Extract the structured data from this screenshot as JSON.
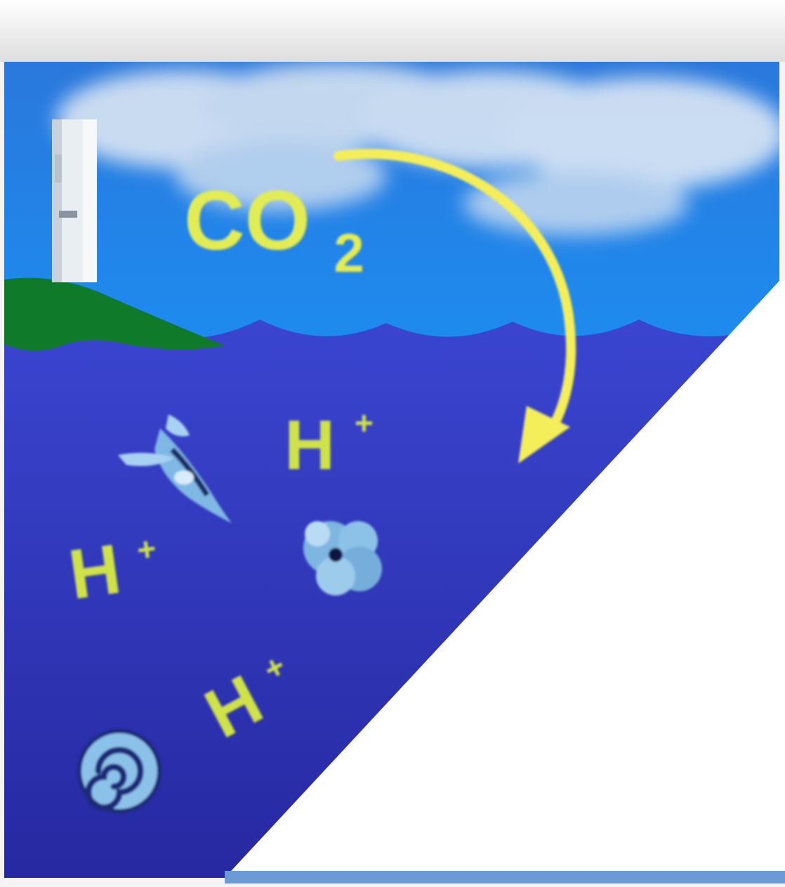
{
  "colors": {
    "sky_top": "#2a7fe0",
    "sky_bottom": "#1f8ff0",
    "cloud": "#e8eef5",
    "ocean": "#3540c8",
    "ocean_deep": "#2a2fa6",
    "land": "#0e7a2a",
    "label": "#d8e84a",
    "arrow": "#f4ee5a",
    "icon_light": "#8fc8f0"
  },
  "labels": {
    "co2_main": "CO",
    "co2_subscript": "2",
    "ion_main": "H",
    "ion_charge": "+"
  },
  "icons": [
    "smokestack-icon",
    "pteropod-icon",
    "coccolith-icon",
    "ammonite-shell-icon"
  ]
}
